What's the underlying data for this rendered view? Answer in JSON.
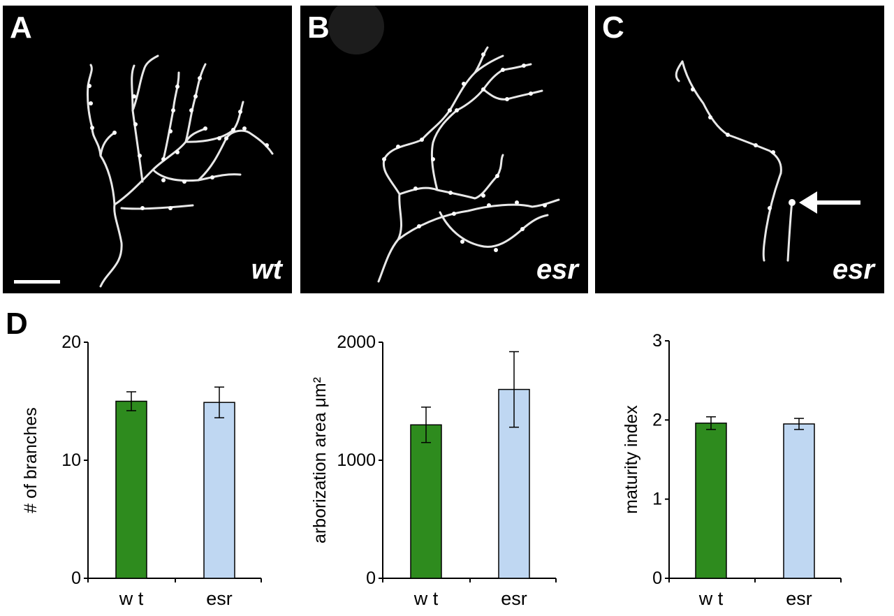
{
  "panels": [
    {
      "label": "A",
      "genotype": "wt",
      "scale_bar": true
    },
    {
      "label": "B",
      "genotype": "esr",
      "scale_bar": false
    },
    {
      "label": "C",
      "genotype": "esr",
      "scale_bar": false,
      "arrow": true
    }
  ],
  "panel_d": {
    "label": "D"
  },
  "colors": {
    "wt": "#2e8b1e",
    "esr": "#bfd7f2"
  },
  "chart_data": [
    {
      "type": "bar",
      "categories": [
        "w t",
        "esr"
      ],
      "values": [
        15.0,
        14.9
      ],
      "errors": [
        0.8,
        1.3
      ],
      "ylabel": "# of branches",
      "ylim": [
        0,
        20
      ],
      "yticks": [
        "0",
        "10",
        "20"
      ],
      "ytick_values": [
        0,
        10,
        20
      ],
      "grid": false
    },
    {
      "type": "bar",
      "categories": [
        "w t",
        "esr"
      ],
      "values": [
        1300,
        1600
      ],
      "errors": [
        150,
        320
      ],
      "ylabel": "arborization area μm²",
      "ylim": [
        0,
        2000
      ],
      "yticks": [
        "0",
        "1000",
        "2000"
      ],
      "ytick_values": [
        0,
        1000,
        2000
      ],
      "grid": false
    },
    {
      "type": "bar",
      "categories": [
        "w t",
        "esr"
      ],
      "values": [
        1.96,
        1.95
      ],
      "errors": [
        0.08,
        0.07
      ],
      "ylabel": "maturity index",
      "ylim": [
        0,
        3
      ],
      "yticks": [
        "0",
        "1",
        "2",
        "3"
      ],
      "ytick_values": [
        0,
        1,
        2,
        3
      ],
      "grid": false
    }
  ]
}
